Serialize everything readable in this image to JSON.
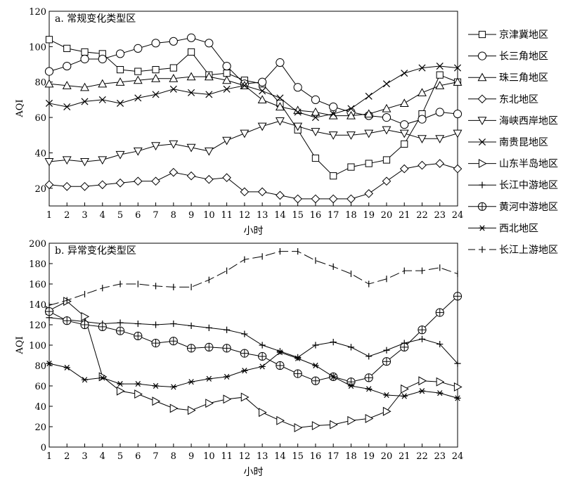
{
  "chart_data": [
    {
      "type": "line",
      "title": "a. 常规变化类型区",
      "xlabel": "小时",
      "ylabel": "AQI",
      "x": [
        1,
        2,
        3,
        4,
        5,
        6,
        7,
        8,
        9,
        10,
        11,
        12,
        13,
        14,
        15,
        16,
        17,
        18,
        19,
        20,
        21,
        22,
        23,
        24
      ],
      "xlim": [
        1,
        24
      ],
      "ylim": [
        10,
        120
      ],
      "yticks": [
        20,
        40,
        60,
        80,
        100,
        120
      ],
      "grid": false,
      "legend_position": "right",
      "series": [
        {
          "name": "京津冀地区",
          "marker": "square",
          "values": [
            104,
            99,
            97,
            96,
            87,
            86,
            87,
            88,
            97,
            84,
            85,
            81,
            79,
            68,
            53,
            37,
            27,
            32,
            34,
            36,
            45,
            62,
            84,
            80
          ]
        },
        {
          "name": "长三角地区",
          "marker": "circle",
          "values": [
            86,
            89,
            93,
            93,
            96,
            99,
            102,
            103,
            105,
            102,
            89,
            79,
            80,
            91,
            77,
            70,
            66,
            63,
            61,
            60,
            56,
            59,
            63,
            62
          ]
        },
        {
          "name": "珠三角地区",
          "marker": "triangle-up",
          "values": [
            79,
            78,
            77,
            79,
            80,
            81,
            82,
            82,
            83,
            83,
            81,
            78,
            70,
            66,
            64,
            63,
            61,
            61,
            62,
            65,
            68,
            74,
            78,
            80
          ]
        },
        {
          "name": "东北地区",
          "marker": "diamond",
          "values": [
            22,
            21,
            21,
            22,
            23,
            24,
            24,
            29,
            27,
            25,
            26,
            18,
            18,
            16,
            14,
            14,
            14,
            14,
            17,
            24,
            31,
            33,
            34,
            31
          ]
        },
        {
          "name": "海峡西岸地区",
          "marker": "triangle-down",
          "values": [
            35,
            36,
            35,
            36,
            39,
            41,
            44,
            45,
            43,
            41,
            47,
            51,
            55,
            58,
            55,
            52,
            50,
            50,
            51,
            53,
            51,
            48,
            48,
            51
          ]
        },
        {
          "name": "南贵昆地区",
          "marker": "x",
          "values": [
            68,
            66,
            69,
            70,
            68,
            71,
            73,
            76,
            74,
            73,
            76,
            78,
            75,
            71,
            63,
            60,
            62,
            65,
            72,
            79,
            85,
            88,
            89,
            88
          ]
        }
      ]
    },
    {
      "type": "line",
      "title": "b. 异常变化类型区",
      "xlabel": "小时",
      "ylabel": "AQI",
      "x": [
        1,
        2,
        3,
        4,
        5,
        6,
        7,
        8,
        9,
        10,
        11,
        12,
        13,
        14,
        15,
        16,
        17,
        18,
        19,
        20,
        21,
        22,
        23,
        24
      ],
      "xlim": [
        1,
        24
      ],
      "ylim": [
        0,
        200
      ],
      "yticks": [
        0,
        20,
        40,
        60,
        80,
        100,
        120,
        140,
        160,
        180,
        200
      ],
      "grid": false,
      "legend_position": "right",
      "series": [
        {
          "name": "山东半岛地区",
          "marker": "triangle-right",
          "values": [
            134,
            143,
            128,
            69,
            55,
            52,
            45,
            38,
            36,
            43,
            47,
            49,
            34,
            26,
            19,
            21,
            22,
            26,
            28,
            35,
            57,
            65,
            64,
            59
          ]
        },
        {
          "name": "长江中游地区",
          "marker": "plus",
          "values": [
            127,
            125,
            123,
            121,
            122,
            121,
            120,
            121,
            119,
            117,
            115,
            111,
            100,
            94,
            88,
            100,
            103,
            98,
            89,
            95,
            102,
            106,
            101,
            82
          ]
        },
        {
          "name": "黄河中游地区",
          "marker": "circle-plus",
          "values": [
            133,
            124,
            120,
            118,
            114,
            109,
            102,
            104,
            97,
            98,
            97,
            92,
            89,
            80,
            72,
            65,
            69,
            64,
            68,
            84,
            98,
            115,
            132,
            148
          ]
        },
        {
          "name": "西北地区",
          "marker": "asterisk",
          "values": [
            82,
            78,
            66,
            68,
            62,
            62,
            60,
            59,
            64,
            67,
            69,
            75,
            79,
            93,
            87,
            80,
            69,
            60,
            57,
            51,
            50,
            55,
            53,
            48
          ]
        },
        {
          "name": "长江上游地区",
          "marker": "tick",
          "values": [
            139,
            144,
            150,
            156,
            160,
            160,
            158,
            157,
            157,
            164,
            173,
            184,
            187,
            192,
            192,
            183,
            177,
            170,
            160,
            165,
            173,
            173,
            176,
            170
          ]
        }
      ]
    }
  ]
}
